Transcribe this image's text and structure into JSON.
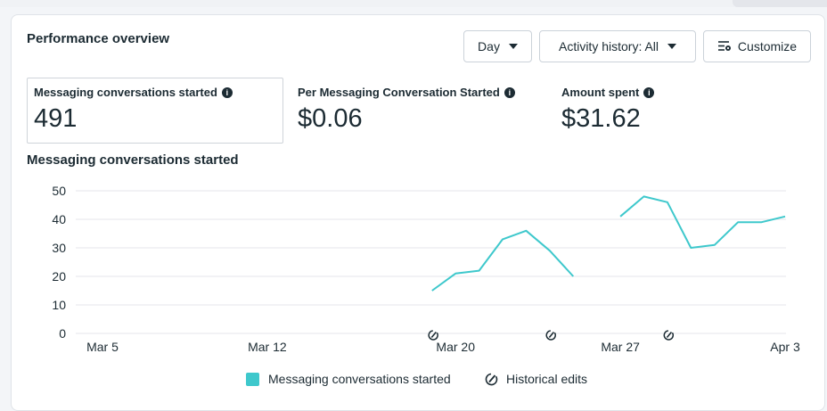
{
  "header": {
    "title": "Performance overview",
    "day_label": "Day",
    "activity_label": "Activity history: All",
    "customize_label": "Customize"
  },
  "metrics": [
    {
      "label": "Messaging conversations started",
      "value": "491"
    },
    {
      "label": "Per Messaging Conversation Started",
      "value": "$0.06"
    },
    {
      "label": "Amount spent",
      "value": "$31.62"
    }
  ],
  "icons": {
    "info": "info-icon",
    "caret": "caret-down-icon",
    "customize": "customize-icon",
    "historical_edit": "historical-edit-icon"
  },
  "colors": {
    "series": "#3ec8cc",
    "grid": "#e4e6eb",
    "text": "#1c2b33"
  },
  "chart_data": {
    "type": "line",
    "title": "Messaging conversations started",
    "xlabel": "",
    "ylabel": "",
    "ylim": [
      0,
      50
    ],
    "yticks": [
      0,
      10,
      20,
      30,
      40,
      50
    ],
    "x_range": [
      "Mar 5",
      "Apr 3"
    ],
    "x_ticks": [
      "Mar 5",
      "Mar 12",
      "Mar 20",
      "Mar 27",
      "Apr 3"
    ],
    "grid": true,
    "legend_placement": "bottom",
    "series": [
      {
        "name": "Messaging conversations started",
        "segments": [
          {
            "x": [
              "Mar 19",
              "Mar 20",
              "Mar 21",
              "Mar 22",
              "Mar 23",
              "Mar 24",
              "Mar 25"
            ],
            "y": [
              15,
              21,
              22,
              33,
              36,
              29,
              20
            ]
          },
          {
            "x": [
              "Mar 27",
              "Mar 28",
              "Mar 29",
              "Mar 30",
              "Mar 31",
              "Apr 1",
              "Apr 2",
              "Apr 3"
            ],
            "y": [
              41,
              48,
              46,
              30,
              31,
              39,
              39,
              41
            ]
          }
        ]
      }
    ],
    "historical_edit_dates": [
      "Mar 19",
      "Mar 24",
      "Mar 29"
    ],
    "legend": [
      "Messaging conversations started",
      "Historical edits"
    ]
  }
}
